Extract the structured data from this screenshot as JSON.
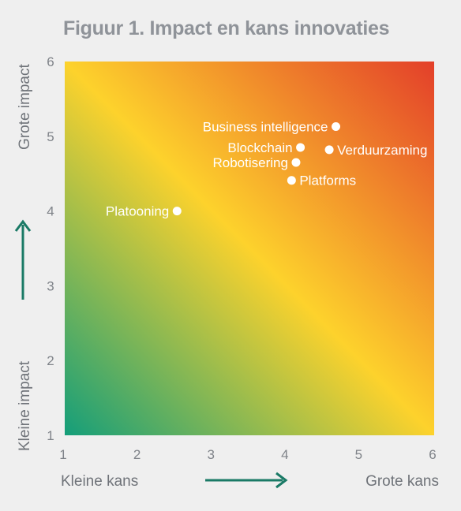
{
  "title": "Figuur 1. Impact en kans innovaties",
  "colors": {
    "green": "#149e7a",
    "yellow": "#fdd22c",
    "red": "#e33f2a",
    "arrow": "#1a7a66",
    "point": "#ffffff"
  },
  "chart_data": {
    "type": "scatter",
    "title": "Figuur 1. Impact en kans innovaties",
    "xlim": [
      1,
      6
    ],
    "ylim": [
      1,
      6
    ],
    "x_ticks": [
      "1",
      "2",
      "3",
      "4",
      "5",
      "6"
    ],
    "y_ticks": [
      "1",
      "2",
      "3",
      "4",
      "5",
      "6"
    ],
    "x_labels": {
      "low": "Kleine kans",
      "high": "Grote kans"
    },
    "y_labels": {
      "low": "Kleine impact",
      "high": "Grote impact"
    },
    "grid": false,
    "background": "diagonal gradient green (bottom-left) to yellow to red (top-right)",
    "points": [
      {
        "label": "Business intelligence",
        "x": 4.67,
        "y": 5.13,
        "label_side": "left"
      },
      {
        "label": "Blockchain",
        "x": 4.19,
        "y": 4.85,
        "label_side": "left"
      },
      {
        "label": "Verduurzaming",
        "x": 4.58,
        "y": 4.82,
        "label_side": "right"
      },
      {
        "label": "Robotisering",
        "x": 4.13,
        "y": 4.65,
        "label_side": "left"
      },
      {
        "label": "Platforms",
        "x": 4.07,
        "y": 4.41,
        "label_side": "right"
      },
      {
        "label": "Platooning",
        "x": 2.52,
        "y": 4.0,
        "label_side": "left"
      }
    ]
  }
}
